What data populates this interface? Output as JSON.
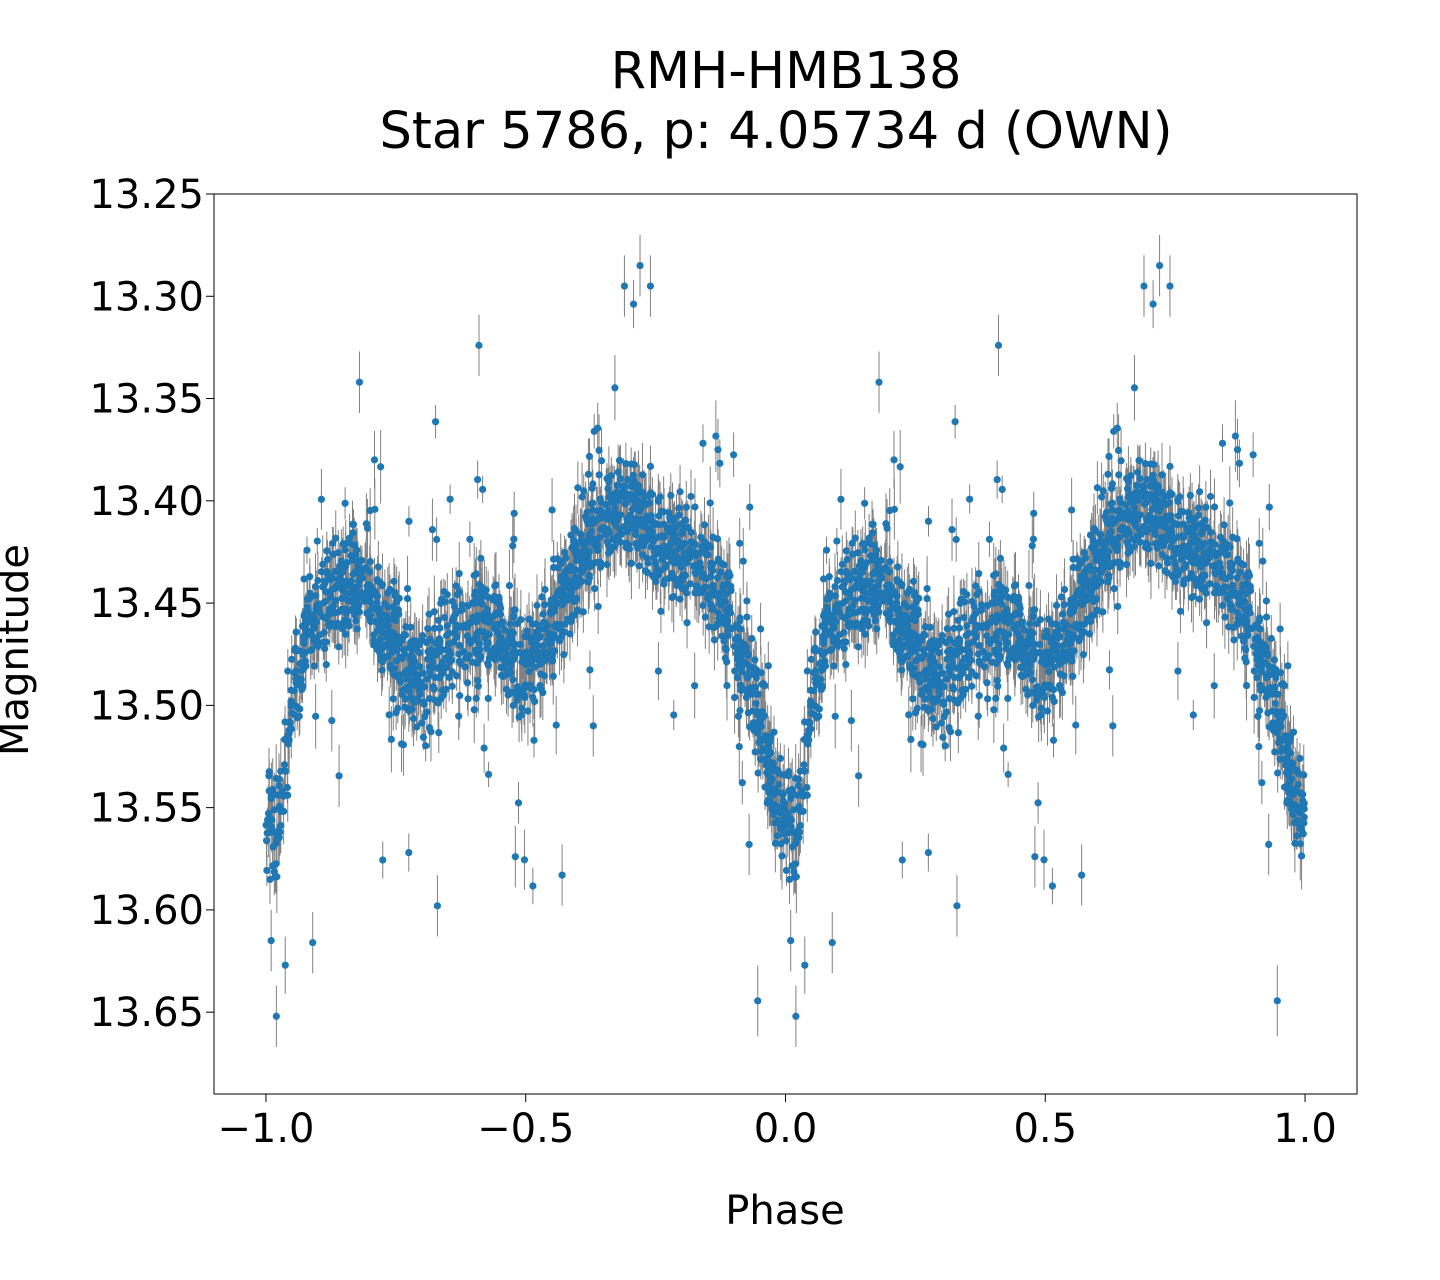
{
  "chart_data": {
    "type": "scatter",
    "title": "RMH-HMB138",
    "subtitle": "Star 5786, p: 4.05734 d (OWN)",
    "xlabel": "Phase",
    "ylabel": "Magnitude",
    "xlim": [
      -1.1,
      1.1
    ],
    "ylim": [
      13.69,
      13.25
    ],
    "y_inverted": true,
    "grid": false,
    "legend": "none",
    "x_ticks": [
      -1.0,
      -0.5,
      0.0,
      0.5,
      1.0
    ],
    "x_tick_labels": [
      "−1.0",
      "−0.5",
      "0.0",
      "0.5",
      "1.0"
    ],
    "y_ticks": [
      13.25,
      13.3,
      13.35,
      13.4,
      13.45,
      13.5,
      13.55,
      13.6,
      13.65
    ],
    "y_tick_labels": [
      "13.25",
      "13.30",
      "13.35",
      "13.40",
      "13.45",
      "13.50",
      "13.55",
      "13.60",
      "13.65"
    ],
    "marker_color": "#1f77b4",
    "errorbar_color": "#808080",
    "light_curve": {
      "phase": [
        0.0,
        0.02,
        0.05,
        0.08,
        0.12,
        0.16,
        0.2,
        0.25,
        0.28,
        0.32,
        0.36,
        0.4,
        0.44,
        0.48,
        0.52,
        0.56,
        0.6,
        0.64,
        0.68,
        0.72,
        0.76,
        0.8,
        0.84,
        0.88,
        0.92,
        0.96,
        1.0
      ],
      "magnitude": [
        13.56,
        13.565,
        13.5,
        13.46,
        13.45,
        13.44,
        13.44,
        13.475,
        13.485,
        13.48,
        13.47,
        13.46,
        13.462,
        13.48,
        13.478,
        13.455,
        13.43,
        13.415,
        13.405,
        13.41,
        13.418,
        13.425,
        13.432,
        13.45,
        13.475,
        13.52,
        13.56
      ],
      "scatter_sigma": 0.013
    },
    "n_points_per_cycle": 1700,
    "outliers": [
      {
        "x": -0.98,
        "y": 13.652
      },
      {
        "x": 0.02,
        "y": 13.652
      },
      {
        "x": -0.99,
        "y": 13.615
      },
      {
        "x": 0.01,
        "y": 13.615
      },
      {
        "x": -0.91,
        "y": 13.616
      },
      {
        "x": 0.09,
        "y": 13.616
      },
      {
        "x": -0.67,
        "y": 13.598
      },
      {
        "x": 0.33,
        "y": 13.598
      },
      {
        "x": -0.28,
        "y": 13.285
      },
      {
        "x": 0.72,
        "y": 13.285
      },
      {
        "x": -0.31,
        "y": 13.295
      },
      {
        "x": 0.69,
        "y": 13.295
      },
      {
        "x": -0.26,
        "y": 13.295
      },
      {
        "x": 0.74,
        "y": 13.295
      },
      {
        "x": -0.59,
        "y": 13.324
      },
      {
        "x": 0.41,
        "y": 13.324
      },
      {
        "x": -0.82,
        "y": 13.342
      },
      {
        "x": 0.18,
        "y": 13.342
      },
      {
        "x": -0.43,
        "y": 13.583
      },
      {
        "x": 0.57,
        "y": 13.583
      },
      {
        "x": -0.07,
        "y": 13.568
      },
      {
        "x": 0.93,
        "y": 13.568
      },
      {
        "x": -0.37,
        "y": 13.51
      },
      {
        "x": 0.63,
        "y": 13.51
      },
      {
        "x": -0.13,
        "y": 13.375
      },
      {
        "x": 0.87,
        "y": 13.375
      },
      {
        "x": -0.52,
        "y": 13.574
      },
      {
        "x": 0.48,
        "y": 13.574
      }
    ]
  }
}
